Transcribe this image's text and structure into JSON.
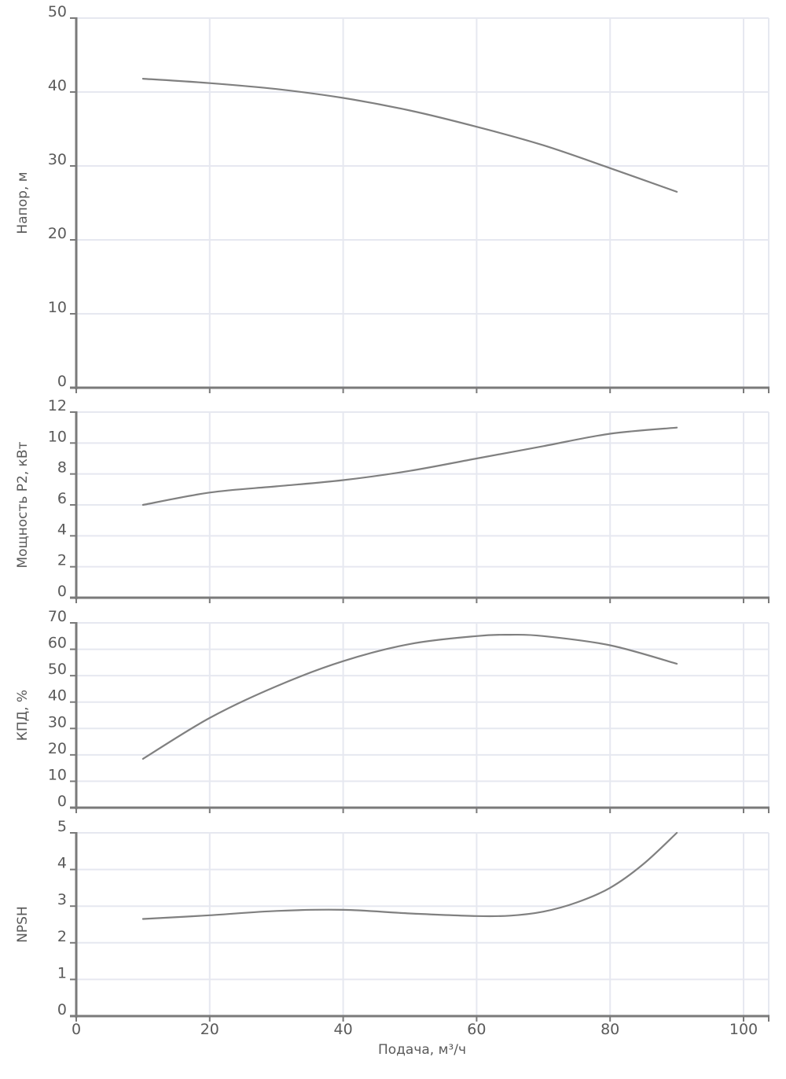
{
  "chart_data": [
    {
      "type": "line",
      "id": "head",
      "title": "",
      "xlabel": "",
      "ylabel": "Напор, м",
      "xlim": [
        0,
        103.7
      ],
      "ylim": [
        0,
        50
      ],
      "yticks": [
        0,
        10,
        20,
        30,
        40,
        50
      ],
      "xticks": [
        0,
        20,
        40,
        60,
        80,
        100
      ],
      "show_x_tick_labels": false,
      "grid": true,
      "series": [
        {
          "name": "Напор",
          "x": [
            10,
            20,
            30,
            40,
            50,
            60,
            70,
            80,
            90
          ],
          "y": [
            41.8,
            41.2,
            40.4,
            39.2,
            37.5,
            35.3,
            32.8,
            29.7,
            26.5
          ]
        }
      ]
    },
    {
      "type": "line",
      "id": "power",
      "title": "",
      "xlabel": "",
      "ylabel": "Мощность P2, кВт",
      "xlim": [
        0,
        103.7
      ],
      "ylim": [
        0,
        12
      ],
      "yticks": [
        0,
        2,
        4,
        6,
        8,
        10,
        12
      ],
      "xticks": [
        0,
        20,
        40,
        60,
        80,
        100
      ],
      "show_x_tick_labels": false,
      "grid": true,
      "series": [
        {
          "name": "Мощность P2",
          "x": [
            10,
            20,
            30,
            40,
            50,
            60,
            70,
            80,
            90
          ],
          "y": [
            6.0,
            6.8,
            7.2,
            7.6,
            8.2,
            9.0,
            9.8,
            10.6,
            11.0
          ]
        }
      ]
    },
    {
      "type": "line",
      "id": "efficiency",
      "title": "",
      "xlabel": "",
      "ylabel": "КПД, %",
      "xlim": [
        0,
        103.7
      ],
      "ylim": [
        0,
        70
      ],
      "yticks": [
        0,
        10,
        20,
        30,
        40,
        50,
        60,
        70
      ],
      "xticks": [
        0,
        20,
        40,
        60,
        80,
        100
      ],
      "show_x_tick_labels": false,
      "grid": true,
      "series": [
        {
          "name": "КПД",
          "x": [
            10,
            20,
            30,
            40,
            50,
            60,
            65,
            70,
            80,
            90
          ],
          "y": [
            18.5,
            34,
            46,
            55.5,
            62,
            65,
            65.5,
            65,
            61.5,
            54.5
          ]
        }
      ]
    },
    {
      "type": "line",
      "id": "npsh",
      "title": "",
      "xlabel": "Подача, м³/ч",
      "ylabel": "NPSH",
      "xlim": [
        0,
        103.7
      ],
      "ylim": [
        0,
        5
      ],
      "yticks": [
        0,
        1,
        2,
        3,
        4,
        5
      ],
      "xticks": [
        0,
        20,
        40,
        60,
        80,
        100
      ],
      "show_x_tick_labels": true,
      "grid": true,
      "series": [
        {
          "name": "NPSH",
          "x": [
            10,
            20,
            30,
            40,
            50,
            60,
            65,
            70,
            75,
            80,
            85,
            90
          ],
          "y": [
            2.65,
            2.75,
            2.87,
            2.9,
            2.8,
            2.73,
            2.74,
            2.85,
            3.1,
            3.5,
            4.15,
            5.0
          ]
        }
      ]
    }
  ],
  "labels": {
    "head_ylabel": "Напор, м",
    "power_ylabel": "Мощность P2, кВт",
    "efficiency_ylabel": "КПД, %",
    "npsh_ylabel": "NPSH",
    "xlabel": "Подача, м³/ч"
  },
  "colors": {
    "curve": "#808080",
    "axis": "#7a7a7a",
    "grid": "#e6e8f0",
    "text": "#5a5a5a"
  }
}
